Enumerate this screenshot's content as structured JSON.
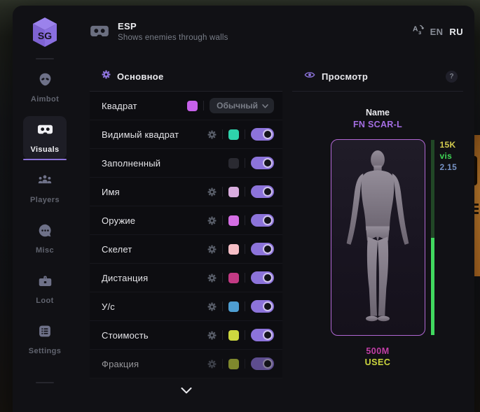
{
  "brand": {
    "logo": "SG"
  },
  "sidebar": {
    "items": [
      {
        "id": "aimbot",
        "label": "Aimbot",
        "icon": "alien-icon",
        "active": false
      },
      {
        "id": "visuals",
        "label": "Visuals",
        "icon": "goggles-icon",
        "active": true
      },
      {
        "id": "players",
        "label": "Players",
        "icon": "people-icon",
        "active": false
      },
      {
        "id": "misc",
        "label": "Misc",
        "icon": "chat-dots-icon",
        "active": false
      },
      {
        "id": "loot",
        "label": "Loot",
        "icon": "briefcase-icon",
        "active": false
      },
      {
        "id": "settings",
        "label": "Settings",
        "icon": "list-icon",
        "active": false
      }
    ]
  },
  "header": {
    "title": "ESP",
    "subtitle": "Shows enemies through walls",
    "languages": [
      {
        "code": "EN",
        "active": false
      },
      {
        "code": "RU",
        "active": true
      }
    ]
  },
  "settings_panel": {
    "title": "Основное",
    "rows": [
      {
        "label": "Квадрат",
        "gear": false,
        "swatch": "#c661ea",
        "control": "dropdown",
        "value": "Обычный"
      },
      {
        "label": "Видимый квадрат",
        "gear": true,
        "swatch": "#2ed3ac",
        "control": "toggle",
        "on": true
      },
      {
        "label": "Заполненный",
        "gear": false,
        "swatch": "#2a2a31",
        "control": "toggle",
        "on": true
      },
      {
        "label": "Имя",
        "gear": true,
        "swatch": "#d9addf",
        "control": "toggle",
        "on": true
      },
      {
        "label": "Оружие",
        "gear": true,
        "swatch": "#d46ee4",
        "control": "toggle",
        "on": true
      },
      {
        "label": "Скелет",
        "gear": true,
        "swatch": "#f6bec6",
        "control": "toggle",
        "on": true
      },
      {
        "label": "Дистанция",
        "gear": true,
        "swatch": "#c23a84",
        "control": "toggle",
        "on": true
      },
      {
        "label": "У/с",
        "gear": true,
        "swatch": "#4e9ed2",
        "control": "toggle",
        "on": true
      },
      {
        "label": "Стоимость",
        "gear": true,
        "swatch": "#cdd83f",
        "control": "toggle",
        "on": true
      },
      {
        "label": "Фракция",
        "gear": true,
        "swatch": "#c3d23c",
        "control": "toggle",
        "on": true,
        "faded": true
      }
    ]
  },
  "preview_panel": {
    "title": "Просмотр",
    "help_label": "?",
    "name_label": "Name",
    "weapon": "FN SCAR-L",
    "weapon_color": "#a46ee3",
    "stats": [
      {
        "text": "15K",
        "color": "#d3cb4e"
      },
      {
        "text": "vis",
        "color": "#3fd455"
      },
      {
        "text": "2.15",
        "color": "#7792c4"
      }
    ],
    "health_bar": {
      "dim_color": "#214726",
      "bright_color": "#41d95f",
      "dim_percent": 50
    },
    "value": {
      "text": "500M",
      "color": "#c13ea6"
    },
    "faction": {
      "text": "USEC",
      "color": "#ccd63e"
    }
  },
  "colors": {
    "accent": "#8b72d8",
    "toggle_track": "#8c73da",
    "preview_border": "#b168d4"
  }
}
